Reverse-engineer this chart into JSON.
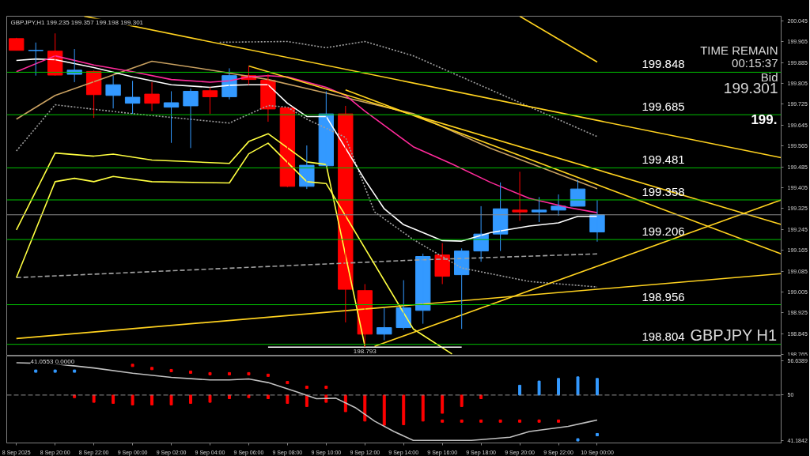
{
  "chart_data": [
    {
      "type": "candlestick",
      "title": "GBPJPY,H1  199.235 199.357 199.198 199.301",
      "x": [
        "2025-09-08T18:00",
        "2025-09-08T19:00",
        "2025-09-08T20:00",
        "2025-09-08T21:00",
        "2025-09-08T22:00",
        "2025-09-08T23:00",
        "2025-09-09T00:00",
        "2025-09-09T01:00",
        "2025-09-09T02:00",
        "2025-09-09T03:00",
        "2025-09-09T04:00",
        "2025-09-09T05:00",
        "2025-09-09T06:00",
        "2025-09-09T07:00",
        "2025-09-09T08:00",
        "2025-09-09T09:00",
        "2025-09-09T10:00",
        "2025-09-09T11:00",
        "2025-09-09T12:00",
        "2025-09-09T13:00",
        "2025-09-09T14:00",
        "2025-09-09T15:00",
        "2025-09-09T16:00",
        "2025-09-09T17:00",
        "2025-09-09T18:00",
        "2025-09-09T19:00",
        "2025-09-09T20:00",
        "2025-09-09T21:00",
        "2025-09-09T22:00",
        "2025-09-09T23:00",
        "2025-09-10T00:00"
      ],
      "ohlc": [
        [
          199.977,
          199.98,
          199.932,
          199.932
        ],
        [
          199.931,
          199.962,
          199.835,
          199.932
        ],
        [
          199.929,
          199.997,
          199.835,
          199.837
        ],
        [
          199.84,
          199.937,
          199.81,
          199.856
        ],
        [
          199.851,
          199.855,
          199.673,
          199.762
        ],
        [
          199.759,
          199.835,
          199.709,
          199.8
        ],
        [
          199.729,
          199.815,
          199.688,
          199.752
        ],
        [
          199.764,
          199.81,
          199.699,
          199.729
        ],
        [
          199.714,
          199.775,
          199.577,
          199.731
        ],
        [
          199.719,
          199.785,
          199.557,
          199.775
        ],
        [
          199.777,
          199.79,
          199.688,
          199.754
        ],
        [
          199.754,
          199.863,
          199.744,
          199.835
        ],
        [
          199.835,
          199.871,
          199.8,
          199.82
        ],
        [
          199.817,
          199.84,
          199.658,
          199.707
        ],
        [
          199.711,
          199.714,
          199.407,
          199.41
        ],
        [
          199.41,
          199.567,
          199.4,
          199.491
        ],
        [
          199.489,
          199.775,
          199.486,
          199.688
        ],
        [
          199.688,
          199.719,
          198.888,
          199.015
        ],
        [
          199.01,
          199.035,
          198.793,
          198.843
        ],
        [
          198.843,
          198.944,
          198.82,
          198.868
        ],
        [
          198.868,
          199.05,
          198.86,
          198.944
        ],
        [
          198.934,
          199.152,
          198.883,
          199.141
        ],
        [
          199.147,
          199.192,
          199.035,
          199.065
        ],
        [
          199.071,
          199.172,
          198.863,
          199.162
        ],
        [
          199.162,
          199.334,
          199.121,
          199.227
        ],
        [
          199.227,
          199.425,
          199.162,
          199.324
        ],
        [
          199.319,
          199.466,
          199.278,
          199.312
        ],
        [
          199.312,
          199.369,
          199.273,
          199.319
        ],
        [
          199.319,
          199.379,
          199.298,
          199.334
        ],
        [
          199.334,
          199.435,
          199.334,
          199.4
        ],
        [
          199.235,
          199.357,
          199.198,
          199.301
        ]
      ],
      "colors": [
        "#ff0000",
        "#3399ff",
        "#ff0000",
        "#3399ff",
        "#ff0000",
        "#3399ff",
        "#3399ff",
        "#ff0000",
        "#3399ff",
        "#3399ff",
        "#ff0000",
        "#3399ff",
        "#ff0000",
        "#ff0000",
        "#ff0000",
        "#3399ff",
        "#3399ff",
        "#ff0000",
        "#ff0000",
        "#3399ff",
        "#3399ff",
        "#3399ff",
        "#ff0000",
        "#3399ff",
        "#3399ff",
        "#3399ff",
        "#ff0000",
        "#3399ff",
        "#3399ff",
        "#3399ff",
        "#3399ff"
      ],
      "series": [
        {
          "type": "line",
          "color": "#c8a060",
          "x": [
            "2025-09-08T18:00",
            "2025-09-08T20:00",
            "2025-09-09T01:00",
            "2025-09-09T04:00",
            "2025-09-09T07:00",
            "2025-09-09T10:00",
            "2025-09-09T14:30",
            "2025-09-09T18:30",
            "2025-09-10T00:00"
          ],
          "values": [
            199.668,
            199.759,
            199.89,
            199.857,
            199.82,
            199.768,
            199.689,
            199.556,
            199.401
          ]
        },
        {
          "type": "line",
          "color": "#a0a0a0",
          "line_style": "dotted",
          "x": [
            "2025-09-09T04:30",
            "2025-09-09T08:00",
            "2025-09-09T10:00",
            "2025-09-09T12:00",
            "2025-09-09T14:30",
            "2025-09-10T00:00"
          ],
          "values": [
            199.963,
            199.966,
            199.942,
            199.966,
            199.911,
            199.601
          ]
        },
        {
          "type": "line",
          "color": "#a0a0a0",
          "line_style": "dotted",
          "x": [
            "2025-09-08T18:00",
            "2025-09-08T20:00",
            "2025-09-09T00:00",
            "2025-09-09T05:00",
            "2025-09-09T07:00",
            "2025-09-09T08:00",
            "2025-09-09T09:00",
            "2025-09-09T11:00",
            "2025-09-09T12:30",
            "2025-09-09T14:30",
            "2025-09-09T17:00",
            "2025-09-09T20:30",
            "2025-09-10T00:00"
          ],
          "values": [
            199.546,
            199.723,
            199.689,
            199.653,
            199.72,
            199.714,
            199.668,
            199.598,
            199.312,
            199.206,
            199.097,
            199.045,
            199.024
          ]
        },
        {
          "type": "line",
          "color": "#a0a0a0",
          "line_style": "dashed",
          "x": [
            "2025-09-08T18:00",
            "2025-09-09T14:30",
            "2025-09-10T00:00"
          ],
          "values": [
            199.06,
            199.127,
            199.151
          ]
        },
        {
          "type": "line",
          "color": "#ffff40",
          "x": [
            "2025-09-08T18:00",
            "2025-09-08T20:00",
            "2025-09-08T22:00",
            "2025-09-08T23:00",
            "2025-09-09T01:00",
            "2025-09-09T05:00",
            "2025-09-09T06:00",
            "2025-09-09T07:00",
            "2025-09-09T09:00",
            "2025-09-09T10:00",
            "2025-09-09T12:00"
          ],
          "values": [
            199.243,
            199.538,
            199.526,
            199.534,
            199.511,
            199.498,
            199.582,
            199.612,
            199.504,
            199.494,
            198.797
          ]
        },
        {
          "type": "line",
          "color": "#ffff40",
          "x": [
            "2025-09-08T18:00",
            "2025-09-08T20:00",
            "2025-09-08T21:00",
            "2025-09-08T22:00",
            "2025-09-08T23:00",
            "2025-09-09T01:00",
            "2025-09-09T05:00",
            "2025-09-09T06:00",
            "2025-09-09T07:00",
            "2025-09-09T09:00",
            "2025-09-09T10:00",
            "2025-09-09T14:30",
            "2025-09-09T16:30"
          ],
          "values": [
            199.06,
            199.428,
            199.441,
            199.428,
            199.448,
            199.428,
            199.423,
            199.535,
            199.576,
            199.428,
            199.421,
            198.863,
            198.767
          ]
        },
        {
          "type": "line",
          "color": "#ffffff",
          "x": [
            "2025-09-08T18:00",
            "2025-09-08T19:00",
            "2025-09-08T20:00",
            "2025-09-08T22:00",
            "2025-09-09T00:00",
            "2025-09-09T02:00",
            "2025-09-09T04:00",
            "2025-09-09T05:00",
            "2025-09-09T06:00",
            "2025-09-09T07:00",
            "2025-09-09T08:00",
            "2025-09-09T09:00",
            "2025-09-09T10:00",
            "2025-09-09T11:00",
            "2025-09-09T12:00",
            "2025-09-09T13:00",
            "2025-09-09T14:00",
            "2025-09-09T14:30",
            "2025-09-09T16:00",
            "2025-09-09T17:00",
            "2025-09-09T18:30",
            "2025-09-09T20:30",
            "2025-09-09T22:00",
            "2025-09-09T23:00",
            "2025-09-10T00:00"
          ],
          "values": [
            199.893,
            199.899,
            199.896,
            199.866,
            199.83,
            199.8,
            199.79,
            199.798,
            199.8,
            199.8,
            199.729,
            199.678,
            199.678,
            199.557,
            199.435,
            199.324,
            199.263,
            199.248,
            199.202,
            199.2,
            199.233,
            199.258,
            199.27,
            199.295,
            199.295
          ]
        },
        {
          "type": "line",
          "color": "#ff2a9a",
          "x": [
            "2025-09-08T18:00",
            "2025-09-08T20:00",
            "2025-09-08T22:00",
            "2025-09-09T00:00",
            "2025-09-09T02:00",
            "2025-09-09T04:00",
            "2025-09-09T05:00",
            "2025-09-09T06:00",
            "2025-09-09T07:00",
            "2025-09-09T08:00",
            "2025-09-09T10:00",
            "2025-09-09T11:00",
            "2025-09-09T12:00",
            "2025-09-09T13:30",
            "2025-09-09T14:30",
            "2025-09-09T16:30",
            "2025-09-09T18:30",
            "2025-09-09T20:30",
            "2025-09-09T22:30",
            "2025-09-10T00:00"
          ],
          "values": [
            199.85,
            199.911,
            199.876,
            199.85,
            199.82,
            199.81,
            199.815,
            199.83,
            199.835,
            199.83,
            199.79,
            199.759,
            199.699,
            199.617,
            199.562,
            199.496,
            199.425,
            199.364,
            199.329,
            199.309
          ]
        },
        {
          "type": "line",
          "color": "#ffd21f",
          "x": [
            "2025-09-08T21:30",
            "2025-09-10T09:30"
          ],
          "values": [
            200.063,
            199.52
          ]
        },
        {
          "type": "line",
          "color": "#ffd21f",
          "x": [
            "2025-09-09T06:00",
            "2025-09-10T09:30"
          ],
          "values": [
            199.872,
            199.264
          ]
        },
        {
          "type": "line",
          "color": "#ffd21f",
          "x": [
            "2025-09-09T11:00",
            "2025-09-10T09:30"
          ],
          "values": [
            199.78,
            199.151
          ]
        },
        {
          "type": "line",
          "color": "#ffd21f",
          "x": [
            "2025-09-08T18:00",
            "2025-09-10T09:30"
          ],
          "values": [
            198.826,
            199.075
          ]
        },
        {
          "type": "line",
          "color": "#ffd21f",
          "x": [
            "2025-09-09T12:30",
            "2025-09-10T09:30"
          ],
          "values": [
            198.796,
            199.358
          ]
        },
        {
          "type": "line",
          "color": "#ffd21f",
          "x": [
            "2025-09-09T20:00",
            "2025-09-10T00:00"
          ],
          "values": [
            200.063,
            199.887
          ]
        },
        {
          "type": "line",
          "color": "#ffffff",
          "x": [
            "2025-09-09T07:00",
            "2025-09-09T17:00"
          ],
          "values": [
            198.793,
            198.793
          ]
        }
      ],
      "ref_lines": [
        {
          "axis": "y",
          "value": 199.848,
          "label": "199.848",
          "color": "#00c000"
        },
        {
          "axis": "y",
          "value": 199.685,
          "label": "199.685",
          "color": "#00c000"
        },
        {
          "axis": "y",
          "value": 199.481,
          "label": "199.481",
          "color": "#00c000"
        },
        {
          "axis": "y",
          "value": 199.358,
          "label": "199.358",
          "color": "#00c000"
        },
        {
          "axis": "y",
          "value": 199.206,
          "label": "199.206",
          "color": "#00c000"
        },
        {
          "axis": "y",
          "value": 198.956,
          "label": "198.956",
          "color": "#00c000"
        },
        {
          "axis": "y",
          "value": 198.804,
          "label": "198.804",
          "color": "#00c000"
        },
        {
          "axis": "y",
          "value": 199.301,
          "color": "#8a8a8a"
        }
      ],
      "annotations": [
        "TIME REMAIN",
        "00:15:37",
        "Bid",
        "199.301",
        "199.",
        "GBPJPY H1",
        {
          "text": "198.793",
          "x": "2025-09-09T12:00",
          "y": 198.793
        }
      ],
      "xlim": [
        "2025-09-08T17:30",
        "2025-09-10T09:30"
      ],
      "ylim": [
        198.759,
        200.063
      ],
      "yticks": [
        200.045,
        199.965,
        199.885,
        199.805,
        199.725,
        199.645,
        199.565,
        199.485,
        199.405,
        199.325,
        199.245,
        199.165,
        199.085,
        199.005,
        198.925,
        198.845,
        198.765
      ],
      "tick_labels": "y",
      "grid": false
    },
    {
      "type": "bar",
      "series": [
        {
          "type": "bar",
          "x": [
            "2025-09-08T21:00",
            "2025-09-08T22:00",
            "2025-09-08T23:00",
            "2025-09-09T00:00",
            "2025-09-09T01:00",
            "2025-09-09T02:00",
            "2025-09-09T03:00",
            "2025-09-09T04:00",
            "2025-09-09T05:00",
            "2025-09-09T06:00",
            "2025-09-09T07:00",
            "2025-09-09T08:00",
            "2025-09-09T09:00",
            "2025-09-09T10:00",
            "2025-09-09T11:00",
            "2025-09-09T12:00",
            "2025-09-09T13:00",
            "2025-09-09T14:00",
            "2025-09-09T15:00",
            "2025-09-09T16:00",
            "2025-09-09T17:00",
            "2025-09-09T18:00",
            "2025-09-09T20:00",
            "2025-09-09T21:00",
            "2025-09-09T22:00",
            "2025-09-09T23:00",
            "2025-09-10T00:00"
          ],
          "base": [
            50,
            50,
            50,
            50,
            50,
            50,
            50,
            50,
            50,
            50,
            50,
            50,
            50,
            50,
            50,
            50,
            50,
            50,
            50,
            50,
            50,
            50,
            50,
            50,
            50,
            50,
            50
          ],
          "values": [
            -0.5,
            -1.4,
            -1.6,
            -1.9,
            -1.9,
            -1.9,
            -1.6,
            -1.4,
            -0.7,
            -0.5,
            -0.7,
            -1.6,
            -2.2,
            -1.4,
            -3.2,
            -5.0,
            -5.8,
            -5.7,
            -5.0,
            -3.5,
            -2.2,
            -0.7,
            1.9,
            2.7,
            3.2,
            3.5,
            3.2
          ],
          "colors": [
            "#ff0000",
            "#ff0000",
            "#ff0000",
            "#ff0000",
            "#ff0000",
            "#ff0000",
            "#ff0000",
            "#ff0000",
            "#ff0000",
            "#ff0000",
            "#ff0000",
            "#ff0000",
            "#ff0000",
            "#ff0000",
            "#ff0000",
            "#ff0000",
            "#ff0000",
            "#ff0000",
            "#ff0000",
            "#ff0000",
            "#ff0000",
            "#ff0000",
            "#3399ff",
            "#3399ff",
            "#3399ff",
            "#3399ff",
            "#3399ff"
          ]
        },
        {
          "type": "line",
          "color": "#c0c0c0",
          "x": [
            "2025-09-08T18:00",
            "2025-09-08T20:00",
            "2025-09-08T22:00",
            "2025-09-09T00:00",
            "2025-09-09T02:00",
            "2025-09-09T04:00",
            "2025-09-09T05:00",
            "2025-09-09T06:00",
            "2025-09-09T07:00",
            "2025-09-09T08:30",
            "2025-09-09T09:30",
            "2025-09-09T10:30",
            "2025-09-09T11:30",
            "2025-09-09T12:30",
            "2025-09-09T13:30",
            "2025-09-09T14:30",
            "2025-09-09T16:30",
            "2025-09-09T17:30",
            "2025-09-09T19:30",
            "2025-09-09T20:30",
            "2025-09-09T22:30",
            "2025-09-09T23:30",
            "2025-09-10T00:00"
          ],
          "values": [
            56.2,
            56.0,
            55.2,
            54.2,
            53.4,
            52.9,
            52.9,
            53.1,
            52.4,
            50.6,
            49.3,
            49.4,
            47.6,
            45.0,
            43.0,
            41.3,
            41.3,
            41.3,
            41.9,
            43.0,
            44.0,
            44.8,
            45.2
          ]
        },
        {
          "type": "scatter",
          "marker": "square",
          "x": [
            "2025-09-08T19:00",
            "2025-09-08T20:00",
            "2025-09-08T21:00",
            "2025-09-09T00:00",
            "2025-09-09T01:00",
            "2025-09-09T02:00",
            "2025-09-09T03:00",
            "2025-09-09T04:00",
            "2025-09-09T05:00",
            "2025-09-09T06:00",
            "2025-09-09T07:00",
            "2025-09-09T08:00",
            "2025-09-09T09:00",
            "2025-09-09T10:00",
            "2025-09-09T16:00",
            "2025-09-09T17:00",
            "2025-09-09T18:00",
            "2025-09-09T19:00",
            "2025-09-09T20:00",
            "2025-09-09T21:00",
            "2025-09-09T22:00",
            "2025-09-09T23:00",
            "2025-09-10T00:00"
          ],
          "values": [
            54.6,
            54.6,
            54.6,
            55.7,
            55.1,
            54.7,
            54.4,
            54.1,
            54.1,
            54.1,
            53.8,
            52.4,
            51.5,
            51.5,
            45.0,
            45.0,
            45.0,
            45.0,
            45.0,
            45.0,
            45.0,
            41.4,
            42.4
          ],
          "colors": [
            "#3399ff",
            "#3399ff",
            "#3399ff",
            "#ff0000",
            "#ff0000",
            "#ff0000",
            "#ff0000",
            "#ff0000",
            "#ff0000",
            "#ff0000",
            "#ff0000",
            "#ff0000",
            "#ff0000",
            "#ff0000",
            "#ff0000",
            "#ff0000",
            "#ff0000",
            "#ff0000",
            "#ff0000",
            "#ff0000",
            "#ff0000",
            "#3399ff",
            "#3399ff"
          ]
        }
      ],
      "ref_lines": [
        {
          "axis": "y",
          "value": 50,
          "color": "#909090",
          "line_style": "dashed"
        }
      ],
      "annotations": [
        "41.0553  0.0000"
      ],
      "xlim": [
        "2025-09-08T17:30",
        "2025-09-10T09:30"
      ],
      "ylim": [
        40.8,
        57.5
      ],
      "xticks": [
        {
          "value": "2025-09-08T18:00",
          "label": "8 Sep 2025"
        },
        {
          "value": "2025-09-08T20:00",
          "label": "8 Sep 20:00"
        },
        {
          "value": "2025-09-08T22:00",
          "label": "8 Sep 22:00"
        },
        {
          "value": "2025-09-09T00:00",
          "label": "9 Sep 00:00"
        },
        {
          "value": "2025-09-09T02:00",
          "label": "9 Sep 02:00"
        },
        {
          "value": "2025-09-09T04:00",
          "label": "9 Sep 04:00"
        },
        {
          "value": "2025-09-09T06:00",
          "label": "9 Sep 06:00"
        },
        {
          "value": "2025-09-09T08:00",
          "label": "9 Sep 08:00"
        },
        {
          "value": "2025-09-09T10:00",
          "label": "9 Sep 10:00"
        },
        {
          "value": "2025-09-09T12:00",
          "label": "9 Sep 12:00"
        },
        {
          "value": "2025-09-09T14:00",
          "label": "9 Sep 14:00"
        },
        {
          "value": "2025-09-09T16:00",
          "label": "9 Sep 16:00"
        },
        {
          "value": "2025-09-09T18:00",
          "label": "9 Sep 18:00"
        },
        {
          "value": "2025-09-09T20:00",
          "label": "9 Sep 20:00"
        },
        {
          "value": "2025-09-09T22:00",
          "label": "9 Sep 22:00"
        },
        {
          "value": "2025-09-10T00:00",
          "label": "10 Sep 00:00"
        }
      ],
      "yticks": [
        {
          "value": 56.6389,
          "label": "56.6389"
        },
        50,
        {
          "value": 41.1842,
          "label": "41.1842"
        }
      ],
      "grid": false
    }
  ]
}
